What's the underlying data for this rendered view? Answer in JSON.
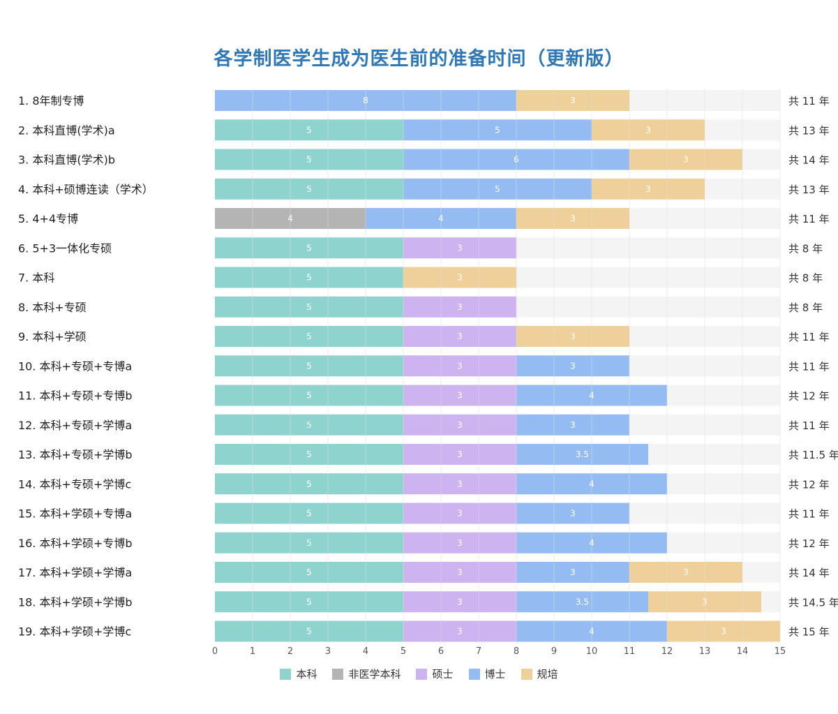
{
  "colors": {
    "本科": "#8fd3cf",
    "非医学本科": "#b4b4b4",
    "硕士": "#cdb3f0",
    "博士": "#95bcf2",
    "规培": "#f0d09a",
    "track": "#f4f4f4",
    "grid": "#dcdcdc"
  },
  "chart_data": {
    "type": "bar",
    "orientation": "horizontal-stacked",
    "title": "各学制医学生成为医生前的准备时间（更新版）",
    "xlim": [
      0,
      15
    ],
    "xticks": [
      0,
      1,
      2,
      3,
      4,
      5,
      6,
      7,
      8,
      9,
      10,
      11,
      12,
      13,
      14,
      15
    ],
    "legend": {
      "placement": "bottom-center",
      "entries": [
        "本科",
        "非医学本科",
        "硕士",
        "博士",
        "规培"
      ]
    },
    "rows": [
      {
        "label": "1. 8年制专博",
        "total_label": "共 11 年",
        "segments": [
          {
            "stage": "博士",
            "value": 8
          },
          {
            "stage": "规培",
            "value": 3
          }
        ]
      },
      {
        "label": "2. 本科直博(学术)a",
        "total_label": "共 13 年",
        "segments": [
          {
            "stage": "本科",
            "value": 5
          },
          {
            "stage": "博士",
            "value": 5
          },
          {
            "stage": "规培",
            "value": 3
          }
        ]
      },
      {
        "label": "3. 本科直博(学术)b",
        "total_label": "共 14 年",
        "segments": [
          {
            "stage": "本科",
            "value": 5
          },
          {
            "stage": "博士",
            "value": 6
          },
          {
            "stage": "规培",
            "value": 3
          }
        ]
      },
      {
        "label": "4. 本科+硕博连读（学术）",
        "total_label": "共 13 年",
        "segments": [
          {
            "stage": "本科",
            "value": 5
          },
          {
            "stage": "博士",
            "value": 5
          },
          {
            "stage": "规培",
            "value": 3
          }
        ]
      },
      {
        "label": "5. 4+4专博",
        "total_label": "共 11 年",
        "segments": [
          {
            "stage": "非医学本科",
            "value": 4
          },
          {
            "stage": "博士",
            "value": 4
          },
          {
            "stage": "规培",
            "value": 3
          }
        ]
      },
      {
        "label": "6. 5+3一体化专硕",
        "total_label": "共 8 年",
        "segments": [
          {
            "stage": "本科",
            "value": 5
          },
          {
            "stage": "硕士",
            "value": 3
          }
        ]
      },
      {
        "label": "7. 本科",
        "total_label": "共 8 年",
        "segments": [
          {
            "stage": "本科",
            "value": 5
          },
          {
            "stage": "规培",
            "value": 3
          }
        ]
      },
      {
        "label": "8. 本科+专硕",
        "total_label": "共 8 年",
        "segments": [
          {
            "stage": "本科",
            "value": 5
          },
          {
            "stage": "硕士",
            "value": 3
          }
        ]
      },
      {
        "label": "9. 本科+学硕",
        "total_label": "共 11 年",
        "segments": [
          {
            "stage": "本科",
            "value": 5
          },
          {
            "stage": "硕士",
            "value": 3
          },
          {
            "stage": "规培",
            "value": 3
          }
        ]
      },
      {
        "label": "10. 本科+专硕+专博a",
        "total_label": "共 11 年",
        "segments": [
          {
            "stage": "本科",
            "value": 5
          },
          {
            "stage": "硕士",
            "value": 3
          },
          {
            "stage": "博士",
            "value": 3
          }
        ]
      },
      {
        "label": "11. 本科+专硕+专博b",
        "total_label": "共 12 年",
        "segments": [
          {
            "stage": "本科",
            "value": 5
          },
          {
            "stage": "硕士",
            "value": 3
          },
          {
            "stage": "博士",
            "value": 4
          }
        ]
      },
      {
        "label": "12. 本科+专硕+学博a",
        "total_label": "共 11 年",
        "segments": [
          {
            "stage": "本科",
            "value": 5
          },
          {
            "stage": "硕士",
            "value": 3
          },
          {
            "stage": "博士",
            "value": 3
          }
        ]
      },
      {
        "label": "13. 本科+专硕+学博b",
        "total_label": "共 11.5 年",
        "segments": [
          {
            "stage": "本科",
            "value": 5
          },
          {
            "stage": "硕士",
            "value": 3
          },
          {
            "stage": "博士",
            "value": 3.5
          }
        ]
      },
      {
        "label": "14. 本科+专硕+学博c",
        "total_label": "共 12 年",
        "segments": [
          {
            "stage": "本科",
            "value": 5
          },
          {
            "stage": "硕士",
            "value": 3
          },
          {
            "stage": "博士",
            "value": 4
          }
        ]
      },
      {
        "label": "15. 本科+学硕+专博a",
        "total_label": "共 11 年",
        "segments": [
          {
            "stage": "本科",
            "value": 5
          },
          {
            "stage": "硕士",
            "value": 3
          },
          {
            "stage": "博士",
            "value": 3
          }
        ]
      },
      {
        "label": "16. 本科+学硕+专博b",
        "total_label": "共 12 年",
        "segments": [
          {
            "stage": "本科",
            "value": 5
          },
          {
            "stage": "硕士",
            "value": 3
          },
          {
            "stage": "博士",
            "value": 4
          }
        ]
      },
      {
        "label": "17. 本科+学硕+学博a",
        "total_label": "共 14 年",
        "segments": [
          {
            "stage": "本科",
            "value": 5
          },
          {
            "stage": "硕士",
            "value": 3
          },
          {
            "stage": "博士",
            "value": 3
          },
          {
            "stage": "规培",
            "value": 3
          }
        ]
      },
      {
        "label": "18. 本科+学硕+学博b",
        "total_label": "共 14.5 年",
        "segments": [
          {
            "stage": "本科",
            "value": 5
          },
          {
            "stage": "硕士",
            "value": 3
          },
          {
            "stage": "博士",
            "value": 3.5
          },
          {
            "stage": "规培",
            "value": 3
          }
        ]
      },
      {
        "label": "19. 本科+学硕+学博c",
        "total_label": "共 15 年",
        "segments": [
          {
            "stage": "本科",
            "value": 5
          },
          {
            "stage": "硕士",
            "value": 3
          },
          {
            "stage": "博士",
            "value": 4
          },
          {
            "stage": "规培",
            "value": 3
          }
        ]
      }
    ]
  }
}
